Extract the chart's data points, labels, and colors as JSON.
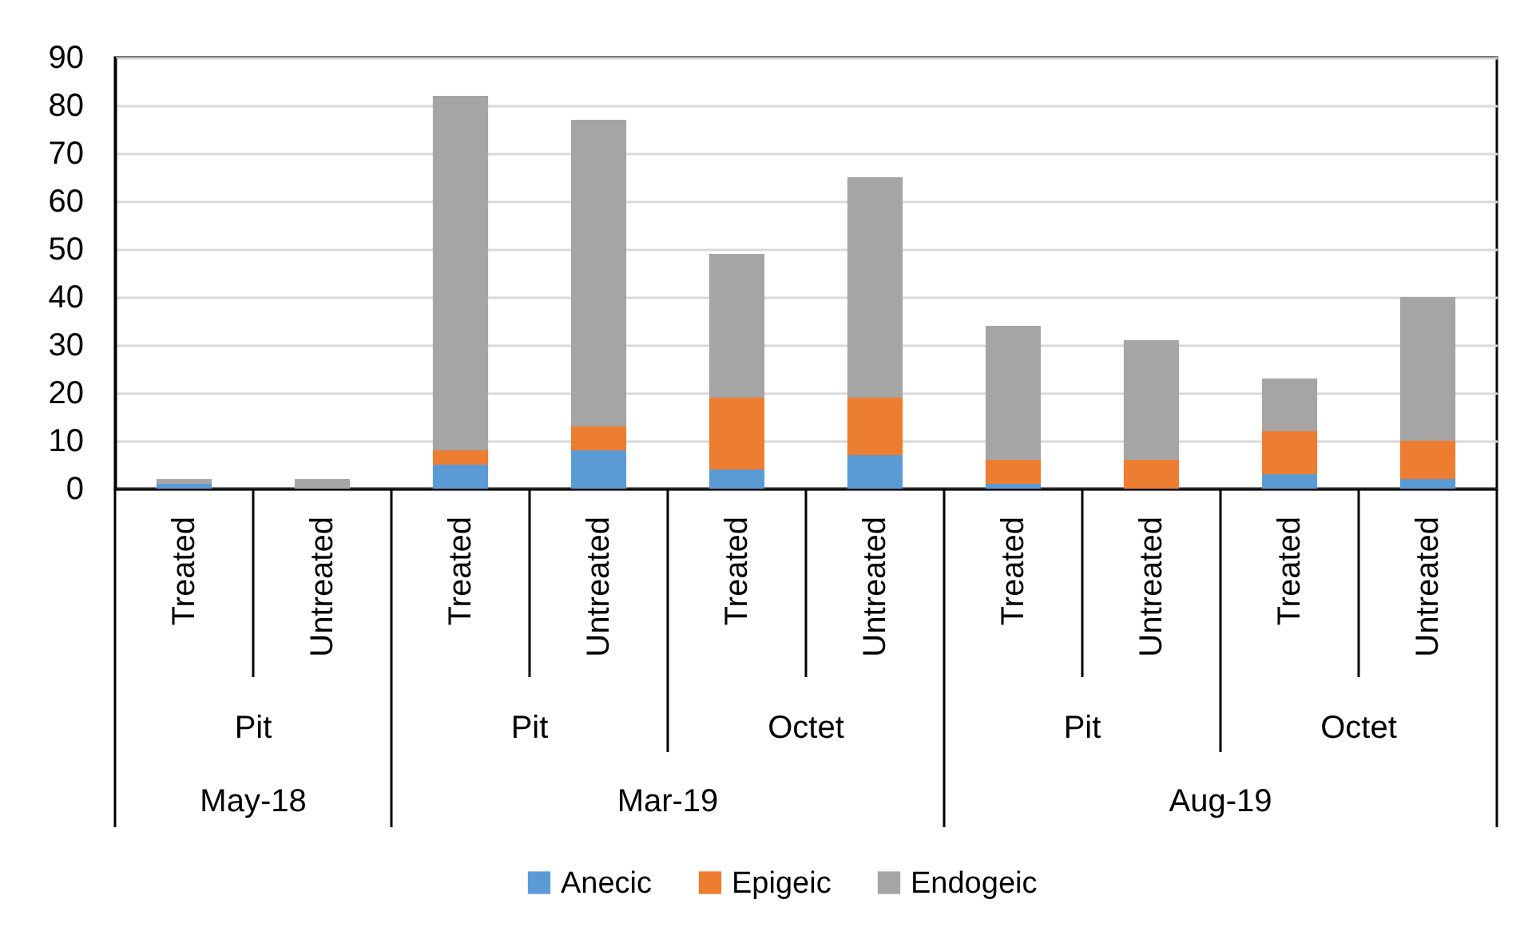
{
  "chart_data": {
    "type": "bar",
    "stacked": true,
    "categories": [
      "Treated",
      "Untreated",
      "Treated",
      "Untreated",
      "Treated",
      "Untreated",
      "Treated",
      "Untreated",
      "Treated",
      "Untreated"
    ],
    "series": [
      {
        "name": "Anecic",
        "color": "#5b9bd5",
        "values": [
          1,
          0,
          5,
          8,
          4,
          7,
          1,
          0,
          3,
          2
        ]
      },
      {
        "name": "Epigeic",
        "color": "#ed7d31",
        "values": [
          0,
          0,
          3,
          5,
          15,
          12,
          5,
          6,
          9,
          8
        ]
      },
      {
        "name": "Endogeic",
        "color": "#a5a5a5",
        "values": [
          1,
          2,
          74,
          64,
          30,
          46,
          28,
          25,
          11,
          30
        ]
      }
    ],
    "ylim": [
      0,
      90
    ],
    "yticks": [
      0,
      10,
      20,
      30,
      40,
      50,
      60,
      70,
      80,
      90
    ],
    "grid": "y",
    "legend": "bottom",
    "annotations": [
      "Pit",
      "Pit",
      "Octet",
      "Pit",
      "Octet",
      "May-18",
      "Mar-19",
      "Aug-19"
    ]
  }
}
